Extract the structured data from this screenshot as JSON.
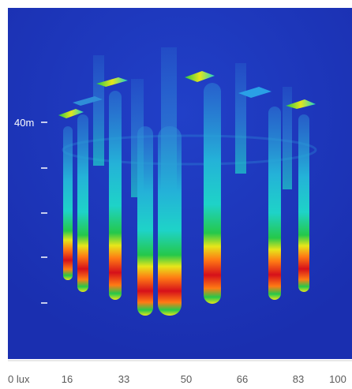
{
  "figure": {
    "height_label": "40m",
    "height_marks": 5
  },
  "colors": {
    "background": "#1a2fb0",
    "low": "#2f8dd8",
    "mid_low": "#1ed3c8",
    "mid": "#25c84a",
    "mid_high": "#e6e61a",
    "high": "#ff7b14",
    "peak": "#d6101a"
  },
  "legend": {
    "unit": "lux",
    "ticks": [
      "0 lux",
      "16",
      "33",
      "50",
      "66",
      "83",
      "100"
    ]
  }
}
